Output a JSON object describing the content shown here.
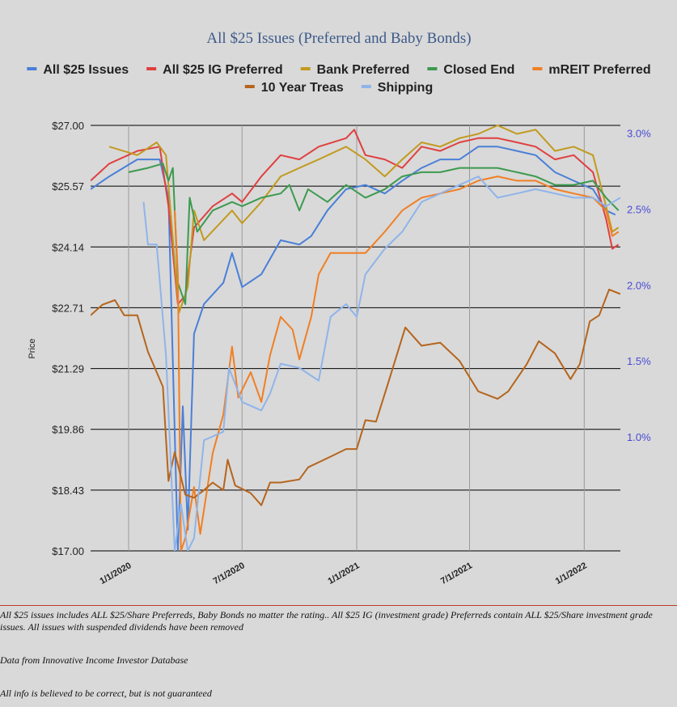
{
  "chart_data": {
    "type": "line",
    "title": "All $25 Issues (Preferred and Baby Bonds)",
    "ylabel": "Price",
    "ylim": [
      17.0,
      27.0
    ],
    "y_ticks": [
      "$27.00",
      "$25.57",
      "$24.14",
      "$22.71",
      "$21.29",
      "$19.86",
      "$18.43",
      "$17.00"
    ],
    "y2lim": [
      0.25,
      3.05
    ],
    "y2_ticks": [
      "3.0%",
      "2.5%",
      "2.0%",
      "1.5%",
      "1.0%"
    ],
    "x_ticks": [
      "1/1/2020",
      "7/1/2020",
      "1/1/2021",
      "7/1/2021",
      "1/1/2022"
    ],
    "x_range": [
      "2019-11-01",
      "2022-02-28"
    ],
    "legend_position": "top",
    "series": [
      {
        "name": "All $25 Issues",
        "color": "#4a7fd8",
        "axis": "left",
        "points": [
          [
            "2019-11-01",
            25.5
          ],
          [
            "2019-12-01",
            25.8
          ],
          [
            "2020-01-15",
            26.2
          ],
          [
            "2020-02-20",
            26.2
          ],
          [
            "2020-03-05",
            25.3
          ],
          [
            "2020-03-20",
            17.0
          ],
          [
            "2020-03-28",
            20.4
          ],
          [
            "2020-04-05",
            17.5
          ],
          [
            "2020-04-15",
            22.1
          ],
          [
            "2020-05-01",
            22.8
          ],
          [
            "2020-06-01",
            23.3
          ],
          [
            "2020-06-15",
            24.0
          ],
          [
            "2020-07-01",
            23.2
          ],
          [
            "2020-08-01",
            23.5
          ],
          [
            "2020-09-01",
            24.3
          ],
          [
            "2020-10-01",
            24.2
          ],
          [
            "2020-10-20",
            24.4
          ],
          [
            "2020-11-15",
            25.0
          ],
          [
            "2020-12-15",
            25.5
          ],
          [
            "2021-01-15",
            25.6
          ],
          [
            "2021-02-15",
            25.4
          ],
          [
            "2021-03-15",
            25.7
          ],
          [
            "2021-04-15",
            26.0
          ],
          [
            "2021-05-15",
            26.2
          ],
          [
            "2021-06-15",
            26.2
          ],
          [
            "2021-07-15",
            26.5
          ],
          [
            "2021-08-15",
            26.5
          ],
          [
            "2021-09-15",
            26.4
          ],
          [
            "2021-10-15",
            26.3
          ],
          [
            "2021-11-15",
            25.9
          ],
          [
            "2021-12-15",
            25.7
          ],
          [
            "2022-01-15",
            25.5
          ],
          [
            "2022-02-05",
            25.0
          ],
          [
            "2022-02-20",
            24.9
          ]
        ]
      },
      {
        "name": "All $25 IG Preferred",
        "color": "#e04040",
        "axis": "left",
        "points": [
          [
            "2019-11-01",
            25.7
          ],
          [
            "2019-12-01",
            26.1
          ],
          [
            "2020-01-15",
            26.4
          ],
          [
            "2020-02-20",
            26.5
          ],
          [
            "2020-03-05",
            25.1
          ],
          [
            "2020-03-20",
            22.8
          ],
          [
            "2020-04-01",
            23.0
          ],
          [
            "2020-04-15",
            24.6
          ],
          [
            "2020-05-15",
            25.1
          ],
          [
            "2020-06-15",
            25.4
          ],
          [
            "2020-07-01",
            25.2
          ],
          [
            "2020-08-01",
            25.8
          ],
          [
            "2020-09-01",
            26.3
          ],
          [
            "2020-10-01",
            26.2
          ],
          [
            "2020-11-01",
            26.5
          ],
          [
            "2020-12-15",
            26.7
          ],
          [
            "2020-12-28",
            26.9
          ],
          [
            "2021-01-15",
            26.3
          ],
          [
            "2021-02-15",
            26.2
          ],
          [
            "2021-03-15",
            26.0
          ],
          [
            "2021-04-15",
            26.5
          ],
          [
            "2021-05-15",
            26.4
          ],
          [
            "2021-06-15",
            26.6
          ],
          [
            "2021-07-15",
            26.7
          ],
          [
            "2021-08-15",
            26.7
          ],
          [
            "2021-09-15",
            26.6
          ],
          [
            "2021-10-15",
            26.5
          ],
          [
            "2021-11-15",
            26.2
          ],
          [
            "2021-12-15",
            26.3
          ],
          [
            "2022-01-15",
            25.9
          ],
          [
            "2022-02-05",
            24.8
          ],
          [
            "2022-02-15",
            24.1
          ],
          [
            "2022-02-25",
            24.2
          ]
        ]
      },
      {
        "name": "Bank Preferred",
        "color": "#c29a1e",
        "axis": "left",
        "points": [
          [
            "2019-12-01",
            26.5
          ],
          [
            "2020-01-15",
            26.3
          ],
          [
            "2020-02-15",
            26.6
          ],
          [
            "2020-03-01",
            26.3
          ],
          [
            "2020-03-15",
            23.8
          ],
          [
            "2020-03-22",
            22.6
          ],
          [
            "2020-04-05",
            23.2
          ],
          [
            "2020-04-15",
            25.0
          ],
          [
            "2020-05-01",
            24.3
          ],
          [
            "2020-06-15",
            25.0
          ],
          [
            "2020-07-01",
            24.7
          ],
          [
            "2020-08-01",
            25.2
          ],
          [
            "2020-09-01",
            25.8
          ],
          [
            "2020-10-01",
            26.0
          ],
          [
            "2020-11-01",
            26.2
          ],
          [
            "2020-12-15",
            26.5
          ],
          [
            "2021-01-15",
            26.2
          ],
          [
            "2021-02-15",
            25.8
          ],
          [
            "2021-03-15",
            26.2
          ],
          [
            "2021-04-15",
            26.6
          ],
          [
            "2021-05-15",
            26.5
          ],
          [
            "2021-06-15",
            26.7
          ],
          [
            "2021-07-15",
            26.8
          ],
          [
            "2021-08-15",
            27.0
          ],
          [
            "2021-09-15",
            26.8
          ],
          [
            "2021-10-15",
            26.9
          ],
          [
            "2021-11-15",
            26.4
          ],
          [
            "2021-12-15",
            26.5
          ],
          [
            "2022-01-15",
            26.3
          ],
          [
            "2022-02-05",
            25.1
          ],
          [
            "2022-02-15",
            24.5
          ],
          [
            "2022-02-25",
            24.6
          ]
        ]
      },
      {
        "name": "Closed End",
        "color": "#3c9a4f",
        "axis": "left",
        "points": [
          [
            "2020-01-01",
            25.9
          ],
          [
            "2020-02-01",
            26.0
          ],
          [
            "2020-02-25",
            26.1
          ],
          [
            "2020-03-05",
            25.7
          ],
          [
            "2020-03-12",
            26.0
          ],
          [
            "2020-03-20",
            23.3
          ],
          [
            "2020-04-01",
            22.8
          ],
          [
            "2020-04-08",
            25.3
          ],
          [
            "2020-04-20",
            24.5
          ],
          [
            "2020-05-15",
            25.0
          ],
          [
            "2020-06-15",
            25.2
          ],
          [
            "2020-07-01",
            25.1
          ],
          [
            "2020-08-01",
            25.3
          ],
          [
            "2020-09-01",
            25.4
          ],
          [
            "2020-09-15",
            25.6
          ],
          [
            "2020-10-01",
            25.0
          ],
          [
            "2020-10-15",
            25.5
          ],
          [
            "2020-11-15",
            25.2
          ],
          [
            "2020-12-15",
            25.6
          ],
          [
            "2021-01-15",
            25.3
          ],
          [
            "2021-02-15",
            25.5
          ],
          [
            "2021-03-15",
            25.8
          ],
          [
            "2021-04-15",
            25.9
          ],
          [
            "2021-05-15",
            25.9
          ],
          [
            "2021-06-15",
            26.0
          ],
          [
            "2021-07-15",
            26.0
          ],
          [
            "2021-08-15",
            26.0
          ],
          [
            "2021-09-15",
            25.9
          ],
          [
            "2021-10-15",
            25.8
          ],
          [
            "2021-11-15",
            25.6
          ],
          [
            "2021-12-15",
            25.6
          ],
          [
            "2022-01-15",
            25.7
          ],
          [
            "2022-02-05",
            25.3
          ],
          [
            "2022-02-25",
            25.0
          ]
        ]
      },
      {
        "name": "mREIT Preferred",
        "color": "#f07f24",
        "axis": "left",
        "points": [
          [
            "2020-03-15",
            25.0
          ],
          [
            "2020-03-20",
            23.5
          ],
          [
            "2020-03-25",
            17.0
          ],
          [
            "2020-04-01",
            17.3
          ],
          [
            "2020-04-15",
            18.5
          ],
          [
            "2020-04-25",
            17.4
          ],
          [
            "2020-05-15",
            19.3
          ],
          [
            "2020-06-01",
            20.2
          ],
          [
            "2020-06-15",
            21.8
          ],
          [
            "2020-06-25",
            20.6
          ],
          [
            "2020-07-15",
            21.2
          ],
          [
            "2020-08-01",
            20.5
          ],
          [
            "2020-08-15",
            21.6
          ],
          [
            "2020-09-01",
            22.5
          ],
          [
            "2020-09-20",
            22.2
          ],
          [
            "2020-10-01",
            21.5
          ],
          [
            "2020-10-20",
            22.5
          ],
          [
            "2020-11-01",
            23.5
          ],
          [
            "2020-11-20",
            24.0
          ],
          [
            "2020-12-15",
            24.0
          ],
          [
            "2021-01-15",
            24.0
          ],
          [
            "2021-02-15",
            24.5
          ],
          [
            "2021-03-15",
            25.0
          ],
          [
            "2021-04-15",
            25.3
          ],
          [
            "2021-05-15",
            25.4
          ],
          [
            "2021-06-15",
            25.5
          ],
          [
            "2021-07-15",
            25.7
          ],
          [
            "2021-08-15",
            25.8
          ],
          [
            "2021-09-15",
            25.7
          ],
          [
            "2021-10-15",
            25.7
          ],
          [
            "2021-11-15",
            25.5
          ],
          [
            "2021-12-15",
            25.4
          ],
          [
            "2022-01-15",
            25.3
          ],
          [
            "2022-02-05",
            25.0
          ],
          [
            "2022-02-15",
            24.4
          ],
          [
            "2022-02-25",
            24.5
          ]
        ]
      },
      {
        "name": "10 Year Treas",
        "color": "#b5651d",
        "axis": "right",
        "points": [
          [
            "2019-11-01",
            1.8
          ],
          [
            "2019-11-20",
            1.87
          ],
          [
            "2019-12-10",
            1.9
          ],
          [
            "2019-12-25",
            1.8
          ],
          [
            "2020-01-15",
            1.8
          ],
          [
            "2020-02-01",
            1.56
          ],
          [
            "2020-02-25",
            1.33
          ],
          [
            "2020-03-05",
            0.71
          ],
          [
            "2020-03-15",
            0.9
          ],
          [
            "2020-04-01",
            0.62
          ],
          [
            "2020-04-15",
            0.6
          ],
          [
            "2020-05-01",
            0.65
          ],
          [
            "2020-05-15",
            0.7
          ],
          [
            "2020-06-01",
            0.65
          ],
          [
            "2020-06-08",
            0.85
          ],
          [
            "2020-06-20",
            0.68
          ],
          [
            "2020-07-15",
            0.63
          ],
          [
            "2020-08-01",
            0.55
          ],
          [
            "2020-08-15",
            0.7
          ],
          [
            "2020-09-01",
            0.7
          ],
          [
            "2020-10-01",
            0.72
          ],
          [
            "2020-10-15",
            0.8
          ],
          [
            "2020-11-15",
            0.86
          ],
          [
            "2020-12-15",
            0.92
          ],
          [
            "2021-01-01",
            0.92
          ],
          [
            "2021-01-15",
            1.11
          ],
          [
            "2021-02-01",
            1.1
          ],
          [
            "2021-02-20",
            1.35
          ],
          [
            "2021-03-20",
            1.72
          ],
          [
            "2021-04-15",
            1.6
          ],
          [
            "2021-05-15",
            1.62
          ],
          [
            "2021-06-15",
            1.5
          ],
          [
            "2021-07-15",
            1.3
          ],
          [
            "2021-08-15",
            1.25
          ],
          [
            "2021-09-01",
            1.3
          ],
          [
            "2021-10-01",
            1.48
          ],
          [
            "2021-10-20",
            1.63
          ],
          [
            "2021-11-15",
            1.55
          ],
          [
            "2021-12-10",
            1.38
          ],
          [
            "2021-12-25",
            1.48
          ],
          [
            "2022-01-10",
            1.76
          ],
          [
            "2022-01-25",
            1.8
          ],
          [
            "2022-02-10",
            1.97
          ],
          [
            "2022-02-28",
            1.94
          ]
        ]
      },
      {
        "name": "Shipping",
        "color": "#8fb4ea",
        "axis": "left",
        "points": [
          [
            "2020-01-25",
            25.2
          ],
          [
            "2020-02-01",
            24.2
          ],
          [
            "2020-02-15",
            24.2
          ],
          [
            "2020-03-01",
            21.6
          ],
          [
            "2020-03-15",
            17.0
          ],
          [
            "2020-03-25",
            18.1
          ],
          [
            "2020-04-05",
            17.0
          ],
          [
            "2020-04-15",
            17.3
          ],
          [
            "2020-05-01",
            19.6
          ],
          [
            "2020-06-01",
            19.8
          ],
          [
            "2020-06-10",
            21.3
          ],
          [
            "2020-07-01",
            20.5
          ],
          [
            "2020-08-01",
            20.3
          ],
          [
            "2020-08-15",
            20.7
          ],
          [
            "2020-09-01",
            21.4
          ],
          [
            "2020-10-01",
            21.3
          ],
          [
            "2020-11-01",
            21.0
          ],
          [
            "2020-11-20",
            22.5
          ],
          [
            "2020-12-15",
            22.8
          ],
          [
            "2021-01-01",
            22.5
          ],
          [
            "2021-01-15",
            23.5
          ],
          [
            "2021-02-15",
            24.1
          ],
          [
            "2021-03-15",
            24.5
          ],
          [
            "2021-04-15",
            25.2
          ],
          [
            "2021-05-15",
            25.4
          ],
          [
            "2021-06-15",
            25.6
          ],
          [
            "2021-07-15",
            25.8
          ],
          [
            "2021-08-15",
            25.3
          ],
          [
            "2021-09-15",
            25.4
          ],
          [
            "2021-10-15",
            25.5
          ],
          [
            "2021-11-15",
            25.4
          ],
          [
            "2021-12-15",
            25.3
          ],
          [
            "2022-01-15",
            25.3
          ],
          [
            "2022-02-05",
            25.1
          ],
          [
            "2022-02-28",
            25.3
          ]
        ]
      }
    ]
  },
  "notes": {
    "line1": "All $25 issues includes ALL $25/Share Preferreds, Baby Bonds no matter the rating..  All $25 IG (investment grade) Preferreds contain ALL $25/Share investment grade issues.  All issues with suspended dividends have been removed",
    "line2": "Data from Innovative Income Investor Database",
    "line3": "All info is believed to be correct, but is not guaranteed"
  }
}
